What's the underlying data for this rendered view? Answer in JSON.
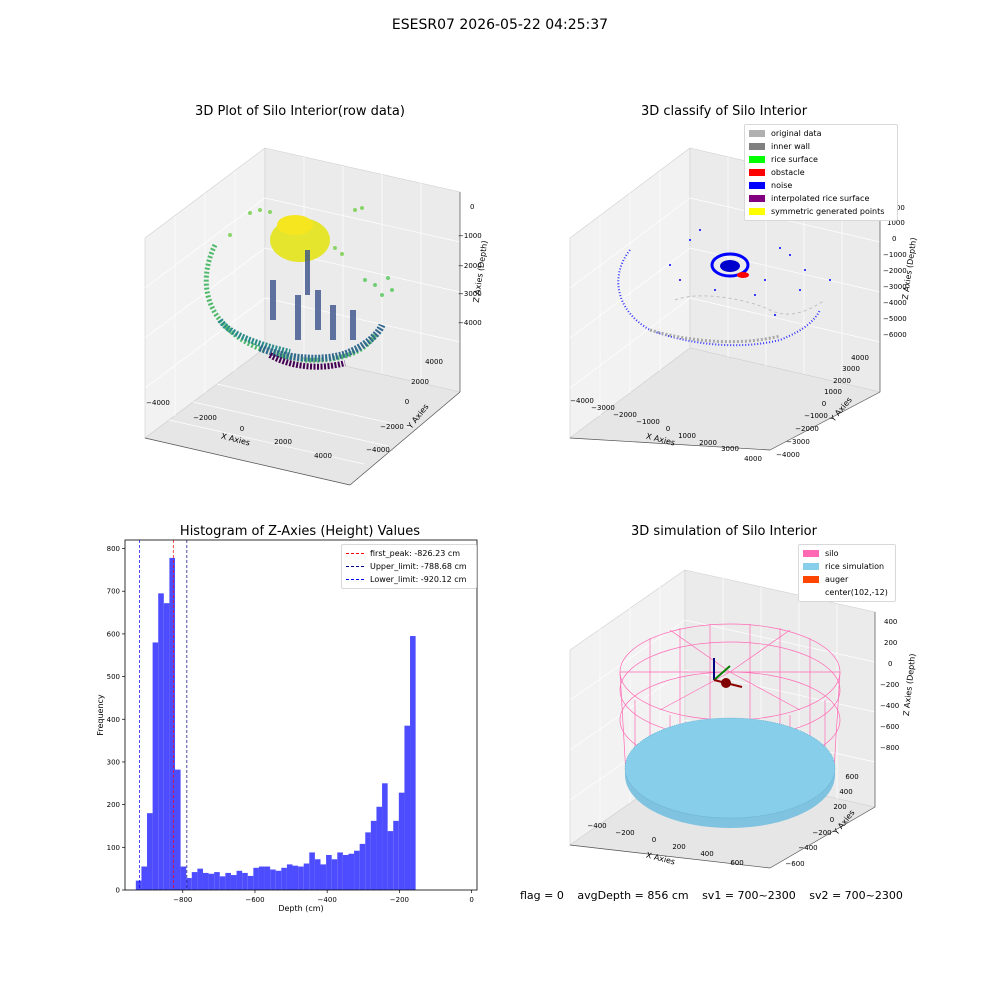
{
  "figure": {
    "suptitle": "ESESR07 2026-05-22 04:25:37"
  },
  "stats": {
    "flag": "flag = 0",
    "avg_depth": "avgDepth = 856 cm",
    "sv1": "sv1 = 700~2300",
    "sv2": "sv2 = 700~2300"
  },
  "chart_data": [
    {
      "type": "scatter",
      "title": "3D Plot of Silo Interior(row data)",
      "xlabel": "X Axies",
      "ylabel": "Y Axies",
      "zlabel": "Z Axies (Depth)",
      "x_ticks": [
        "−4000",
        "−2000",
        "0",
        "2000",
        "4000"
      ],
      "y_ticks": [
        "−4000",
        "−2000",
        "0",
        "2000",
        "4000"
      ],
      "z_ticks": [
        "0",
        "−1000",
        "−2000",
        "−3000",
        "−4000"
      ],
      "colormap": "viridis"
    },
    {
      "type": "scatter",
      "title": "3D classify of Silo Interior",
      "xlabel": "X Axies",
      "ylabel": "Y Axies",
      "zlabel": "Z Axies (Depth)",
      "x_ticks": [
        "−4000",
        "−3000",
        "−2000",
        "−1000",
        "0",
        "1000",
        "2000",
        "3000",
        "4000"
      ],
      "y_ticks": [
        "−4000",
        "−3000",
        "−2000",
        "−1000",
        "0",
        "1000",
        "2000",
        "3000",
        "4000"
      ],
      "z_ticks": [
        "2000",
        "1000",
        "0",
        "−1000",
        "−2000",
        "−3000",
        "−4000",
        "−5000",
        "−6000"
      ],
      "legend": [
        {
          "label": "original data",
          "color": "#b0b0b0"
        },
        {
          "label": "inner wall",
          "color": "#808080"
        },
        {
          "label": "rice surface",
          "color": "#00ff00"
        },
        {
          "label": "obstacle",
          "color": "#ff0000"
        },
        {
          "label": "noise",
          "color": "#0000ff"
        },
        {
          "label": "interpolated rice surface",
          "color": "#800080"
        },
        {
          "label": "symmetric generated points",
          "color": "#ffff00"
        }
      ]
    },
    {
      "type": "bar",
      "title": "Histogram of Z-Axies (Height) Values",
      "xlabel": "Depth (cm)",
      "ylabel": "Frequency",
      "xlim": [
        -960,
        15
      ],
      "ylim": [
        0,
        820
      ],
      "x_ticks": [
        -800,
        -600,
        -400,
        -200,
        0
      ],
      "x_tick_labels": [
        "−800",
        "−600",
        "−400",
        "−200",
        "0"
      ],
      "y_ticks": [
        0,
        100,
        200,
        300,
        400,
        500,
        600,
        700,
        800
      ],
      "bar_color": "#4d4dff",
      "bins_start": -930,
      "bin_width": 15.5,
      "values": [
        22,
        55,
        180,
        580,
        695,
        672,
        778,
        282,
        55,
        28,
        42,
        50,
        40,
        38,
        42,
        32,
        40,
        35,
        45,
        40,
        33,
        52,
        55,
        55,
        48,
        45,
        52,
        60,
        57,
        55,
        62,
        88,
        72,
        60,
        82,
        72,
        88,
        82,
        85,
        92,
        108,
        135,
        162,
        195,
        250,
        138,
        162,
        228,
        385,
        595
      ],
      "vlines": [
        {
          "label": "first_peak: -826.23 cm",
          "x": -826.23,
          "color": "#ff0000"
        },
        {
          "label": "Upper_limit: -788.68 cm",
          "x": -788.68,
          "color": "#000080"
        },
        {
          "label": "Lower_limit: -920.12 cm",
          "x": -920.12,
          "color": "#0000ff"
        }
      ]
    },
    {
      "type": "scatter",
      "title": "3D simulation of Silo Interior",
      "xlabel": "X Axies",
      "ylabel": "Y Axies",
      "zlabel": "Z Axies (Depth)",
      "x_ticks": [
        "−400",
        "−200",
        "0",
        "200",
        "400",
        "600"
      ],
      "y_ticks": [
        "−600",
        "−400",
        "−200",
        "0",
        "200",
        "400",
        "600"
      ],
      "z_ticks": [
        "400",
        "200",
        "0",
        "−200",
        "−400",
        "−600",
        "−800"
      ],
      "legend": [
        {
          "label": "silo",
          "color": "#ff69b4"
        },
        {
          "label": "rice simulation",
          "color": "#87ceeb"
        },
        {
          "label": "auger",
          "color": "#ff4500"
        },
        {
          "label": "center(102,-12)",
          "color": ""
        }
      ]
    }
  ]
}
